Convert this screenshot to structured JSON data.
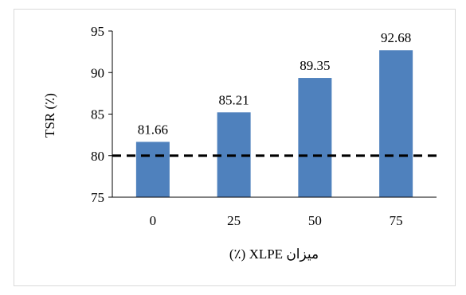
{
  "chart_data": {
    "type": "bar",
    "categories": [
      "0",
      "25",
      "50",
      "75"
    ],
    "values": [
      81.66,
      85.21,
      89.35,
      92.68
    ],
    "data_labels": [
      "81.66",
      "85.21",
      "89.35",
      "92.68"
    ],
    "title": "",
    "xlabel": "میزان XLPE (٪)",
    "ylabel": "TSR (٪)",
    "ylim": [
      75,
      95
    ],
    "yticks": [
      "75",
      "80",
      "85",
      "90",
      "95"
    ],
    "reference_line": {
      "value": 80,
      "style": "dashed"
    },
    "grid": false,
    "legend": "none",
    "bar_color": "#4f81bd",
    "reference_line_color": "#000000"
  }
}
